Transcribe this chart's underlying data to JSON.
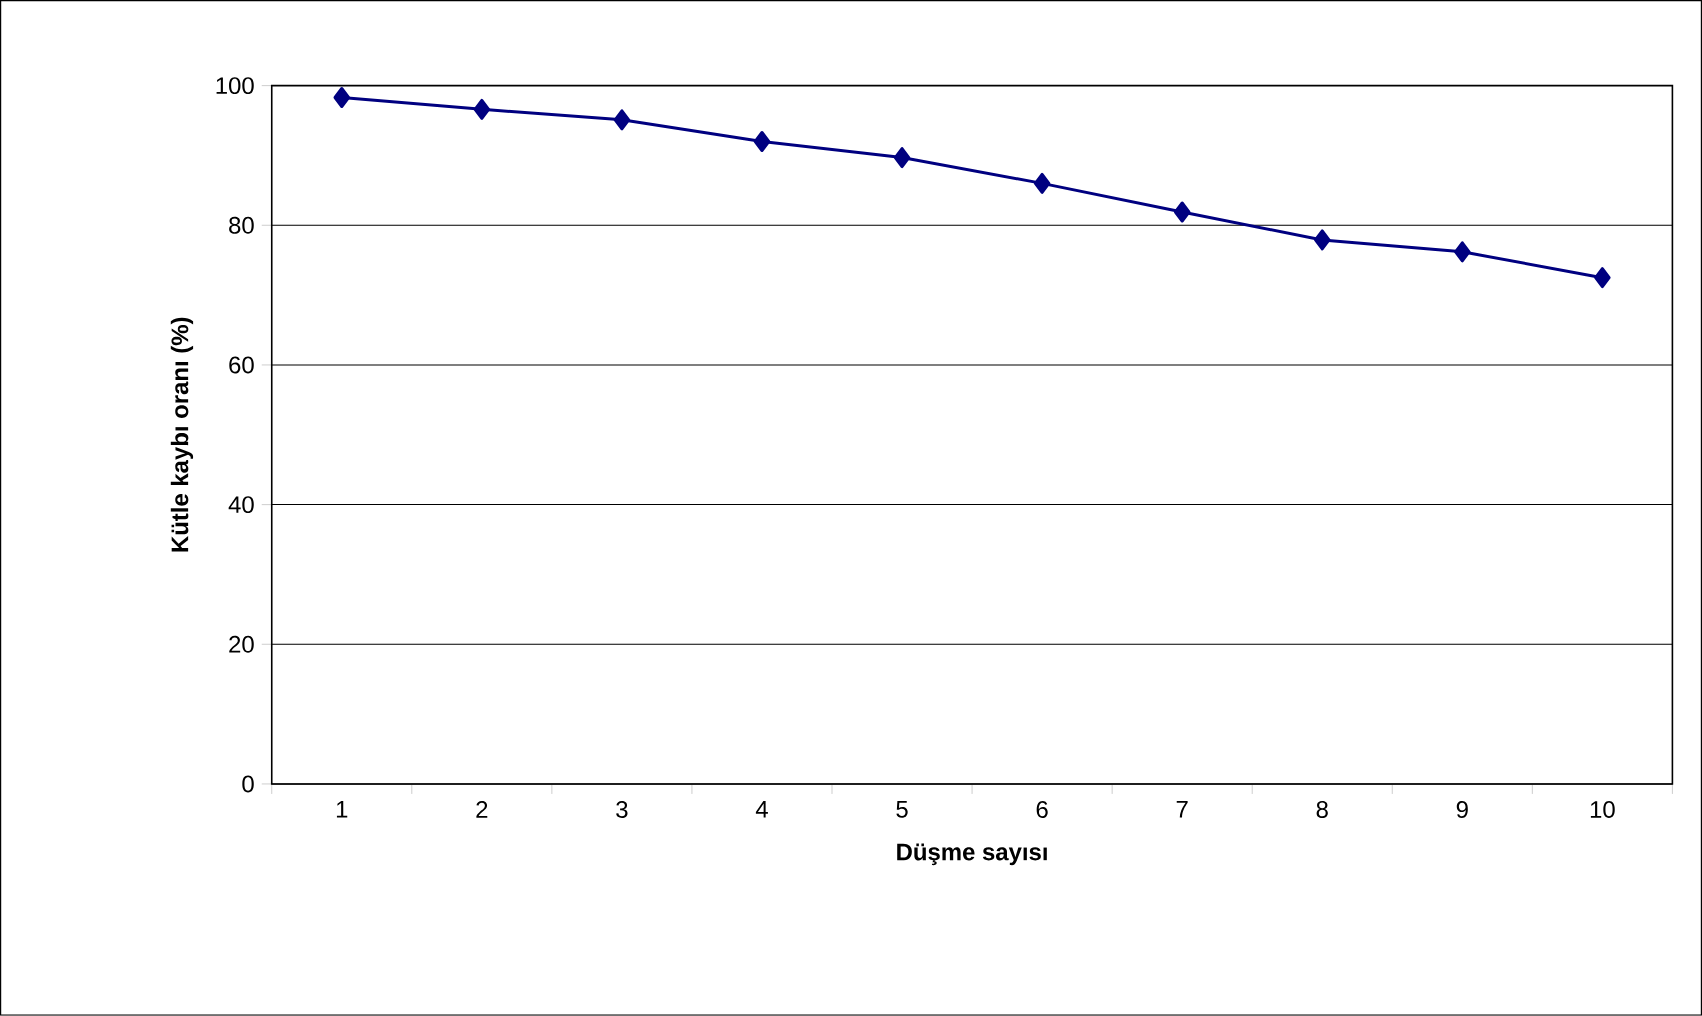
{
  "chart_data": {
    "type": "line",
    "xlabel": "Düşme sayısı",
    "ylabel": "Kütle kaybı oranı (%)",
    "categories": [
      "1",
      "2",
      "3",
      "4",
      "5",
      "6",
      "7",
      "8",
      "9",
      "10"
    ],
    "series": [
      {
        "color": "#000080",
        "values": [
          98.3,
          96.6,
          95.1,
          92.0,
          89.7,
          86.0,
          81.9,
          77.9,
          76.2,
          72.5
        ]
      }
    ],
    "ylim": [
      0,
      100
    ],
    "yticks": [
      0,
      20,
      40,
      60,
      80,
      100
    ],
    "grid": "y",
    "marker": "diamond",
    "line_style": "solid"
  }
}
